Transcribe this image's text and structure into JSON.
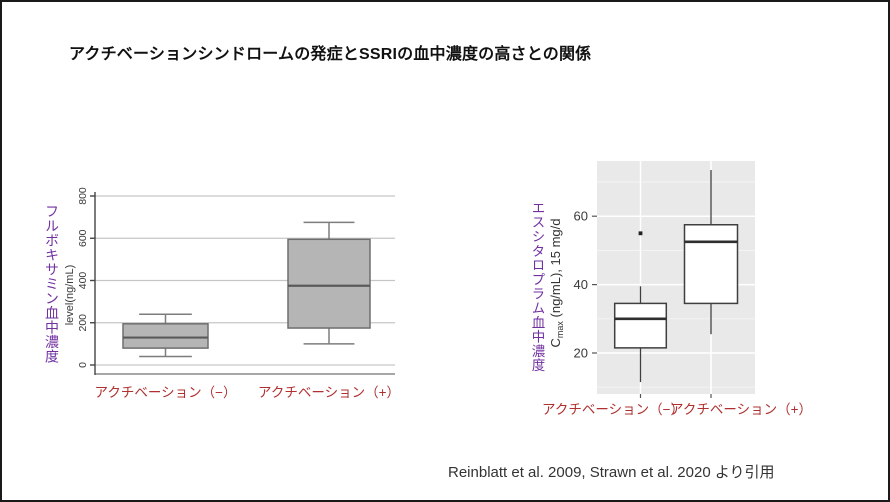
{
  "title": "アクチベーションシンドロームの発症とSSRIの血中濃度の高さとの関係",
  "citation": "Reinblatt et al. 2009, Strawn et al. 2020 より引用",
  "colors": {
    "accent_purple": "#7030A0",
    "category_label_red": "#b03030",
    "box_fill_gray": "#b5b5b5",
    "box_stroke_gray": "#6e6e6e",
    "whisker_gray": "#7d7d7d",
    "grid_gray": "#c6c6c6",
    "panel_gray": "#e9e9e9",
    "ggplot_box_stroke": "#3f3f3f",
    "axis_dark": "#444444"
  },
  "chart_data": [
    {
      "type": "box",
      "style": "base-r",
      "title_vertical": "フルボキサミン血中濃度",
      "ylabel": "level(ng/mL)",
      "ylim": [
        0,
        800
      ],
      "yticks": [
        0,
        200,
        400,
        600,
        800
      ],
      "grid": "horizontal-major",
      "categories": [
        "アクチベーション（−）",
        "アクチベーション（+）"
      ],
      "series": [
        {
          "category": "アクチベーション（−）",
          "min": 40,
          "q1": 80,
          "median": 130,
          "q3": 195,
          "max": 240,
          "outliers": []
        },
        {
          "category": "アクチベーション（+）",
          "min": 100,
          "q1": 175,
          "median": 375,
          "q3": 595,
          "max": 675,
          "outliers": []
        }
      ]
    },
    {
      "type": "box",
      "style": "ggplot",
      "title_vertical": "エスシタロプラム血中濃度",
      "ylabel_prefix": "C",
      "ylabel_sub": "max",
      "ylabel_rest": " (ng/mL), 15 mg/d",
      "ylim": [
        8,
        76
      ],
      "yticks": [
        20,
        40,
        60
      ],
      "yticks_minor": [
        10,
        30,
        50,
        70
      ],
      "grid": "major-and-minor",
      "categories": [
        "アクチベーション（−）",
        "アクチベーション（+）"
      ],
      "series": [
        {
          "category": "アクチベーション（−）",
          "min": 11.5,
          "q1": 21.5,
          "median": 30,
          "q3": 34.5,
          "max": 39.5,
          "outliers": [
            55
          ]
        },
        {
          "category": "アクチベーション（+）",
          "min": 25.5,
          "q1": 34.5,
          "median": 52.5,
          "q3": 57.5,
          "max": 73.5,
          "outliers": []
        }
      ]
    }
  ]
}
